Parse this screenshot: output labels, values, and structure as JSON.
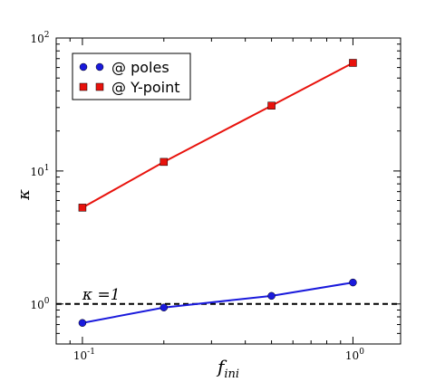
{
  "chart_data": {
    "type": "line",
    "xlabel": "f",
    "xlabel_sub": "ini",
    "ylabel": "κ",
    "xscale": "log",
    "yscale": "log",
    "xlim": [
      0.08,
      1.5
    ],
    "ylim": [
      0.5,
      100
    ],
    "x_ticks": [
      {
        "value": 0.1,
        "base": "10",
        "exp": "-1"
      },
      {
        "value": 1,
        "base": "10",
        "exp": "0"
      }
    ],
    "y_ticks": [
      {
        "value": 1,
        "base": "10",
        "exp": "0"
      },
      {
        "value": 10,
        "base": "10",
        "exp": "1"
      },
      {
        "value": 100,
        "base": "10",
        "exp": "2"
      }
    ],
    "grid": false,
    "legend_position": "top-left",
    "series": [
      {
        "name": "@ poles",
        "color": "#1a1adc",
        "marker": "circle",
        "x": [
          0.1,
          0.2,
          0.5,
          1.0
        ],
        "y": [
          0.72,
          0.94,
          1.15,
          1.45
        ]
      },
      {
        "name": "@ Y-point",
        "color": "#e8120c",
        "marker": "square",
        "x": [
          0.1,
          0.2,
          0.5,
          1.0
        ],
        "y": [
          5.3,
          11.7,
          31,
          65
        ]
      }
    ],
    "reference_line": {
      "y": 1,
      "style": "dashed",
      "color": "#000000",
      "label": "κ =1"
    }
  }
}
